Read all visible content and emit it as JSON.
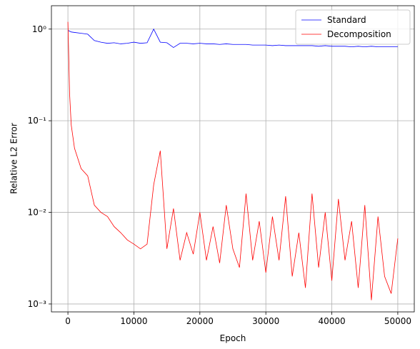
{
  "chart_data": {
    "type": "line",
    "xlabel": "Epoch",
    "ylabel": "Relative L2 Error",
    "x": [
      0,
      250,
      500,
      1000,
      2000,
      3000,
      4000,
      5000,
      6000,
      7000,
      8000,
      9000,
      10000,
      11000,
      12000,
      13000,
      14000,
      15000,
      16000,
      17000,
      18000,
      19000,
      20000,
      21000,
      22000,
      23000,
      24000,
      25000,
      26000,
      27000,
      28000,
      29000,
      30000,
      31000,
      32000,
      33000,
      34000,
      35000,
      36000,
      37000,
      38000,
      39000,
      40000,
      41000,
      42000,
      43000,
      44000,
      45000,
      46000,
      47000,
      48000,
      49000,
      50000
    ],
    "series": [
      {
        "name": "Standard",
        "color": "#0000ff",
        "values": [
          0.97,
          0.95,
          0.93,
          0.92,
          0.9,
          0.88,
          0.75,
          0.72,
          0.7,
          0.71,
          0.69,
          0.7,
          0.72,
          0.7,
          0.71,
          1.0,
          0.72,
          0.71,
          0.63,
          0.7,
          0.7,
          0.69,
          0.7,
          0.69,
          0.69,
          0.68,
          0.69,
          0.68,
          0.68,
          0.68,
          0.67,
          0.67,
          0.67,
          0.66,
          0.67,
          0.66,
          0.66,
          0.66,
          0.66,
          0.66,
          0.65,
          0.66,
          0.65,
          0.65,
          0.65,
          0.64,
          0.65,
          0.64,
          0.65,
          0.64,
          0.64,
          0.64,
          0.64
        ]
      },
      {
        "name": "Decomposition",
        "color": "#ff0000",
        "values": [
          1.2,
          0.2,
          0.09,
          0.05,
          0.03,
          0.025,
          0.012,
          0.01,
          0.009,
          0.007,
          0.006,
          0.005,
          0.0045,
          0.004,
          0.0045,
          0.02,
          0.047,
          0.004,
          0.011,
          0.003,
          0.006,
          0.0035,
          0.01,
          0.003,
          0.007,
          0.0028,
          0.012,
          0.004,
          0.0025,
          0.016,
          0.003,
          0.008,
          0.0022,
          0.009,
          0.003,
          0.015,
          0.002,
          0.006,
          0.0015,
          0.016,
          0.0025,
          0.01,
          0.0018,
          0.014,
          0.003,
          0.008,
          0.0015,
          0.012,
          0.0011,
          0.009,
          0.002,
          0.0013,
          0.0052
        ]
      }
    ],
    "xlim": [
      -2500,
      52500
    ],
    "xticks": [
      0,
      10000,
      20000,
      30000,
      40000,
      50000
    ],
    "ylim": [
      0.00082,
      1.8
    ],
    "ylog": true,
    "yticks": [
      {
        "value": 0.001,
        "label": "10⁻³"
      },
      {
        "value": 0.01,
        "label": "10⁻²"
      },
      {
        "value": 0.1,
        "label": "10⁻¹"
      },
      {
        "value": 1,
        "label": "10⁰"
      }
    ],
    "grid": true,
    "legend": "upper right"
  }
}
